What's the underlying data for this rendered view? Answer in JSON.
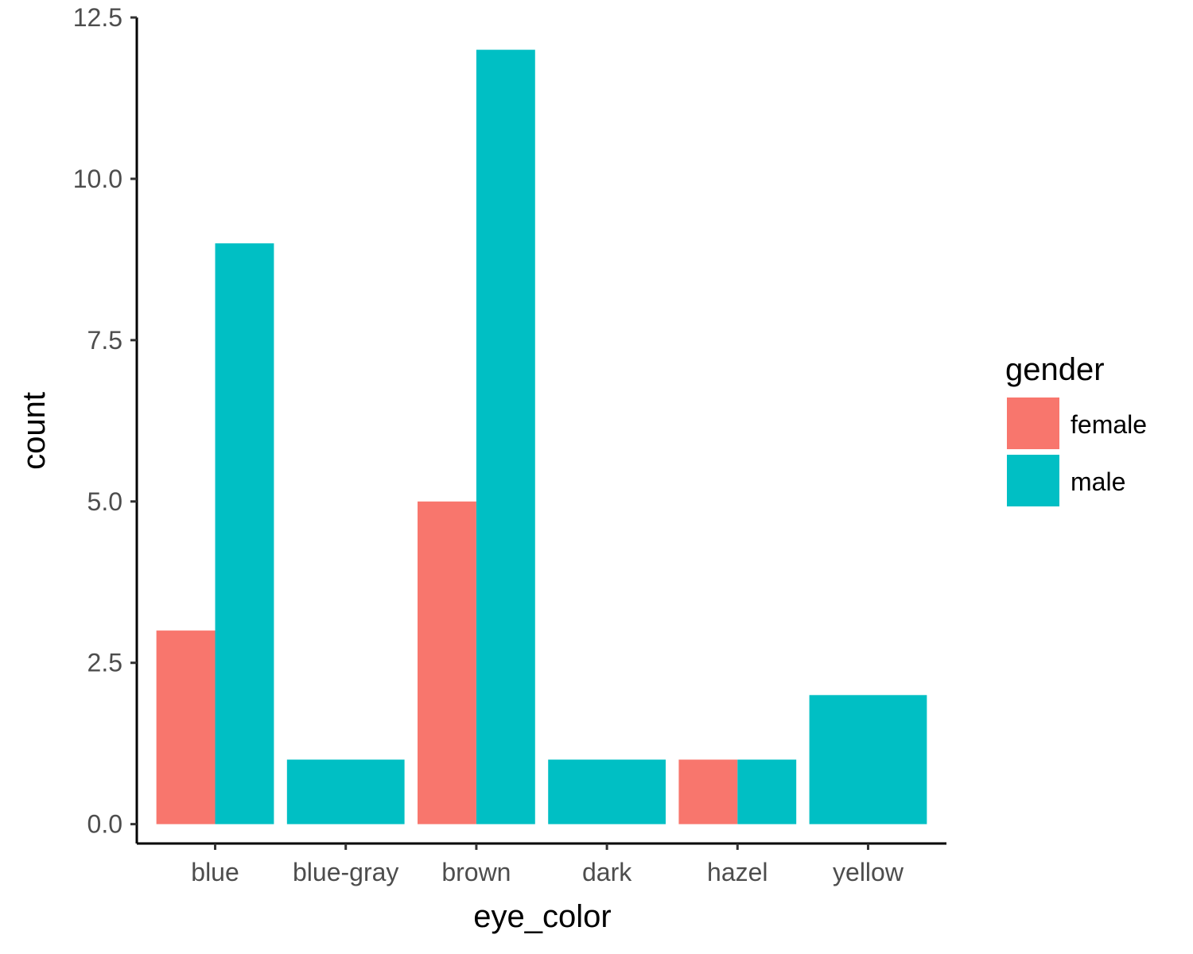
{
  "chart_data": {
    "type": "bar",
    "position": "dodge",
    "categories": [
      "blue",
      "blue-gray",
      "brown",
      "dark",
      "hazel",
      "yellow"
    ],
    "series": [
      {
        "name": "female",
        "color": "#F8766D",
        "values": [
          3,
          null,
          5,
          null,
          1,
          null
        ]
      },
      {
        "name": "male",
        "color": "#00BFC4",
        "values": [
          9,
          1,
          12,
          1,
          1,
          2
        ]
      }
    ],
    "xlabel": "eye_color",
    "ylabel": "count",
    "ylim": [
      -0.3,
      12.5
    ],
    "yticks": [
      0,
      2.5,
      5,
      7.5,
      10,
      12.5
    ],
    "ytick_labels": [
      "0.0",
      "2.5",
      "5.0",
      "7.5",
      "10.0",
      "12.5"
    ],
    "legend": {
      "title": "gender",
      "position": "right"
    },
    "grid": false
  }
}
